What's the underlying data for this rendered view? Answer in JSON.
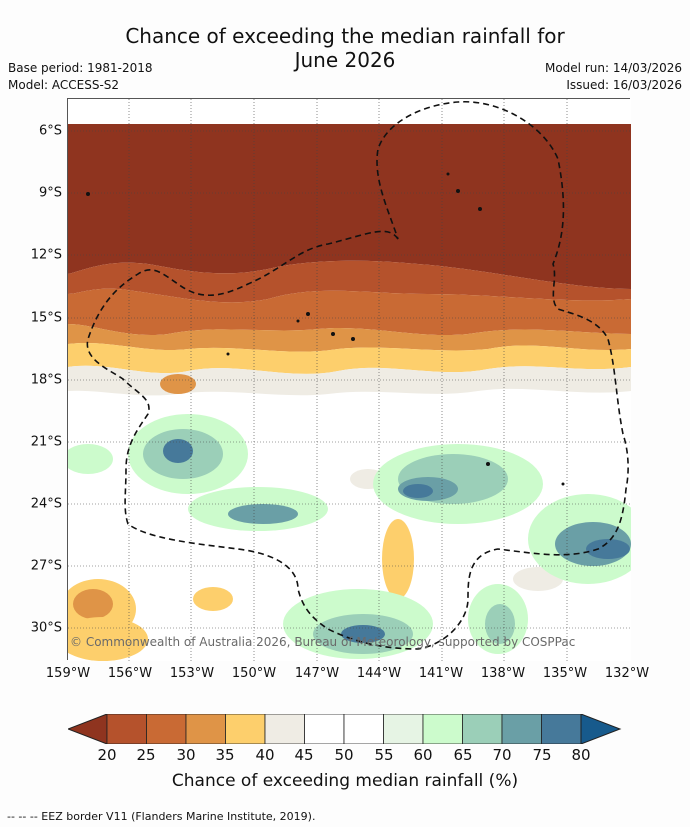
{
  "title": "Chance of exceeding the median rainfall for",
  "subtitle": "June 2026",
  "base_period": "Base period: 1981-2018",
  "model": "Model: ACCESS-S2",
  "model_run": "Model run: 14/03/2026",
  "issued": "Issued: 16/03/2026",
  "lat_labels": [
    "6°S",
    "9°S",
    "12°S",
    "15°S",
    "18°S",
    "21°S",
    "24°S",
    "27°S",
    "30°S"
  ],
  "lon_labels": [
    "159°W",
    "156°W",
    "153°W",
    "150°W",
    "147°W",
    "144°W",
    "141°W",
    "138°W",
    "135°W",
    "132°W"
  ],
  "copyright": "© Commonwealth of Australia 2026, Bureau of Meteorology, supported by COSPPac",
  "colorbar": {
    "labels": [
      "20",
      "25",
      "30",
      "35",
      "40",
      "45",
      "50",
      "55",
      "60",
      "65",
      "70",
      "75",
      "80"
    ],
    "colors": [
      "#8f341f",
      "#b5522c",
      "#c96a34",
      "#df9447",
      "#fdcf6c",
      "#efece4",
      "#ffffff",
      "#ffffff",
      "#e6f4e4",
      "#ccfbcc",
      "#9bcfb8",
      "#6a9fa6",
      "#46799a",
      "#175a8c"
    ],
    "title": "Chance of exceeding median rainfall (%)"
  },
  "footnote": "--  --  -- EEZ border V11 (Flanders Marine Institute, 2019)."
}
